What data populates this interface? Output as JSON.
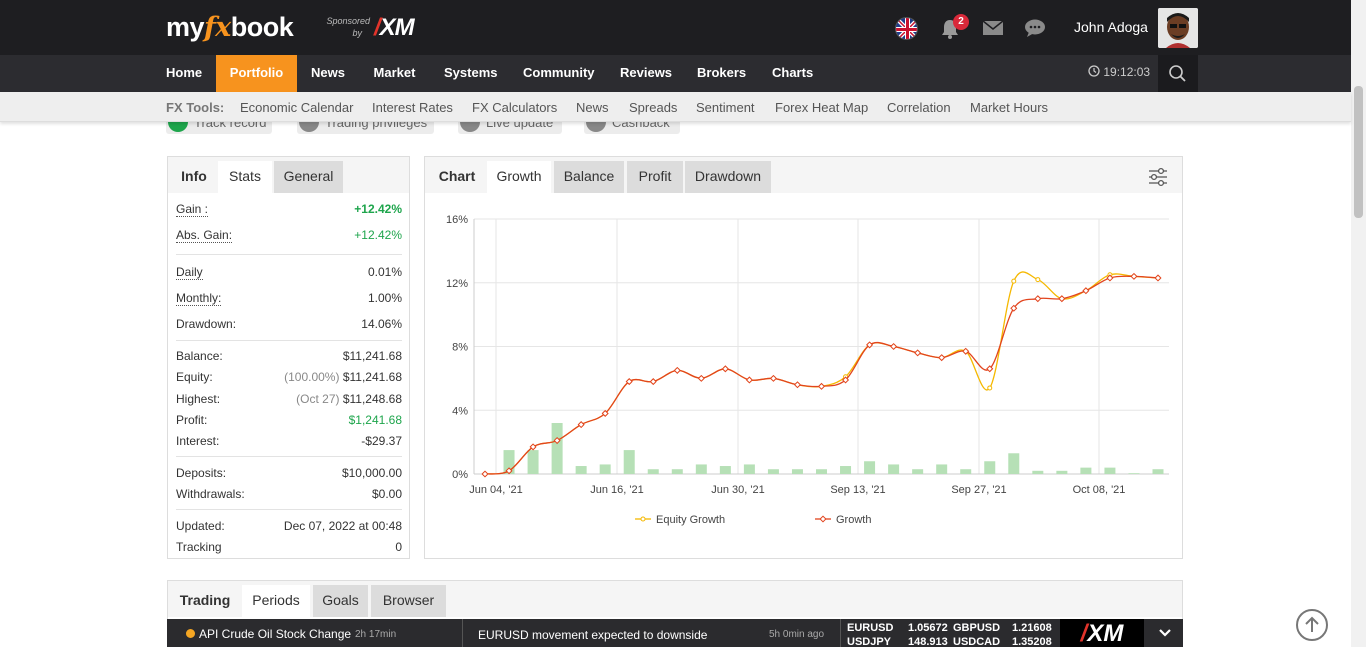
{
  "header": {
    "logo_my": "my",
    "logo_fx": "fx",
    "logo_book": "book",
    "sponsored": "Sponsored",
    "by": "by",
    "sponsor_brand": "XM",
    "notifications_count": "2",
    "user_name": "John Adoga"
  },
  "nav": {
    "items": [
      "Home",
      "Portfolio",
      "News",
      "Market",
      "Systems",
      "Community",
      "Reviews",
      "Brokers",
      "Charts"
    ],
    "active": "Portfolio",
    "time": "19:12:03"
  },
  "tools": {
    "label": "FX Tools:",
    "items": [
      "Economic Calendar",
      "Interest Rates",
      "FX Calculators",
      "News",
      "Spreads",
      "Sentiment",
      "Forex Heat Map",
      "Correlation",
      "Market Hours"
    ]
  },
  "badges": [
    "Track record",
    "Trading privileges",
    "Live update",
    "Cashback"
  ],
  "stats_panel": {
    "tabs": [
      "Info",
      "Stats",
      "General"
    ],
    "gain_label": "Gain :",
    "gain_value": "+12.42%",
    "abs_gain_label": "Abs. Gain:",
    "abs_gain_value": "+12.42%",
    "daily_label": "Daily",
    "daily_value": "0.01%",
    "monthly_label": "Monthly:",
    "monthly_value": "1.00%",
    "drawdown_label": "Drawdown:",
    "drawdown_value": "14.06%",
    "balance_label": "Balance:",
    "balance_value": "$11,241.68",
    "equity_label": "Equity:",
    "equity_pct": "(100.00%)",
    "equity_value": "$11,241.68",
    "highest_label": "Highest:",
    "highest_date": "(Oct 27)",
    "highest_value": "$11,248.68",
    "profit_label": "Profit:",
    "profit_value": "$1,241.68",
    "interest_label": "Interest:",
    "interest_value": "-$29.37",
    "deposits_label": "Deposits:",
    "deposits_value": "$10,000.00",
    "withdrawals_label": "Withdrawals:",
    "withdrawals_value": "$0.00",
    "updated_label": "Updated:",
    "updated_value": "Dec 07, 2022 at 00:48",
    "tracking_label": "Tracking",
    "tracking_value": "0"
  },
  "chart_panel": {
    "tabs": [
      "Chart",
      "Growth",
      "Balance",
      "Profit",
      "Drawdown"
    ],
    "selected_tab": "Growth"
  },
  "chart_data": {
    "type": "line",
    "ylim": [
      0,
      16
    ],
    "yticks": [
      "0%",
      "4%",
      "8%",
      "12%",
      "16%"
    ],
    "xtick_labels": [
      "Jun 04, '21",
      "Jun 16, '21",
      "Jun 30, '21",
      "Sep 13, '21",
      "Sep 27, '21",
      "Oct 08, '21"
    ],
    "legend": [
      "Equity Growth",
      "Growth"
    ],
    "legend_position": "bottom",
    "grid": true,
    "series": [
      {
        "name": "Growth",
        "color": "#e2441e",
        "values": [
          0.0,
          0.2,
          1.7,
          2.1,
          3.1,
          3.8,
          5.8,
          5.8,
          6.5,
          6.0,
          6.6,
          5.9,
          6.0,
          5.6,
          5.5,
          5.9,
          8.1,
          8.0,
          7.6,
          7.3,
          7.7,
          6.6,
          10.4,
          11.0,
          11.0,
          11.5,
          12.3,
          12.4,
          12.3
        ]
      },
      {
        "name": "Equity Growth",
        "color": "#f5b800",
        "values": [
          0.0,
          0.2,
          1.7,
          2.1,
          3.1,
          3.8,
          5.8,
          5.8,
          6.5,
          6.0,
          6.6,
          5.9,
          6.0,
          5.6,
          5.5,
          6.1,
          8.1,
          8.0,
          7.6,
          7.3,
          7.7,
          5.4,
          12.1,
          12.2,
          11.0,
          11.5,
          12.5,
          12.4,
          12.3
        ]
      }
    ],
    "bars": {
      "color": "#b6e0b6",
      "values": [
        0.0,
        1.5,
        1.5,
        3.2,
        0.5,
        0.6,
        1.5,
        0.3,
        0.3,
        0.6,
        0.5,
        0.6,
        0.3,
        0.3,
        0.3,
        0.5,
        0.8,
        0.6,
        0.3,
        0.6,
        0.3,
        0.8,
        1.3,
        0.2,
        0.2,
        0.4,
        0.4,
        0.05,
        0.3
      ]
    }
  },
  "bottom_panel": {
    "tabs": [
      "Trading",
      "Periods",
      "Goals",
      "Browser"
    ]
  },
  "ticker": {
    "event": "API Crude Oil Stock Change",
    "event_time": "2h 17min",
    "news": "EURUSD movement expected to downside",
    "news_time": "5h 0min ago",
    "pairs": [
      {
        "symbol": "EURUSD",
        "price": "1.05672"
      },
      {
        "symbol": "GBPUSD",
        "price": "1.21608"
      },
      {
        "symbol": "USDJPY",
        "price": "148.913"
      },
      {
        "symbol": "USDCAD",
        "price": "1.35208"
      }
    ],
    "brand": "XM"
  }
}
